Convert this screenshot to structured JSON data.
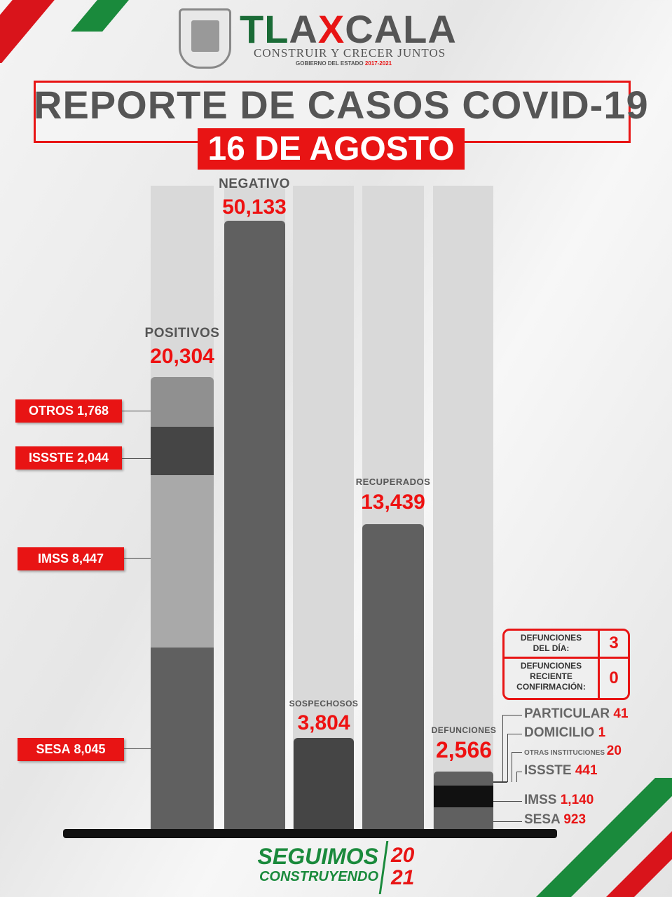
{
  "header": {
    "logo_text": "TLAXCALA",
    "slogan": "CONSTRUIR Y CRECER JUNTOS",
    "gov": "GOBIERNO DEL ESTADO",
    "gov_years": "2017-2021",
    "title": "REPORTE DE CASOS COVID-19",
    "date": "16 DE AGOSTO"
  },
  "colors": {
    "accent_red": "#e81414",
    "green": "#1a8a3c",
    "bar_dark": "#5f5f5f",
    "bar_black": "#111111"
  },
  "chart_data": {
    "type": "bar",
    "categories": [
      "POSITIVOS",
      "NEGATIVO",
      "SOSPECHOSOS",
      "RECUPERADOS",
      "DEFUNCIONES"
    ],
    "values": [
      "20,304",
      "50,133",
      "3,804",
      "13,439",
      "2,566"
    ],
    "positivos_breakdown": [
      {
        "name": "OTROS",
        "value": "1,768"
      },
      {
        "name": "ISSSTE",
        "value": "2,044"
      },
      {
        "name": "IMSS",
        "value": "8,447"
      },
      {
        "name": "SESA",
        "value": "8,045"
      }
    ],
    "defunciones_breakdown": [
      {
        "name": "PARTICULAR",
        "value": "41"
      },
      {
        "name": "DOMICILIO",
        "value": "1"
      },
      {
        "name": "OTRAS INSTITUCIONES",
        "value": "20"
      },
      {
        "name": "ISSSTE",
        "value": "441"
      },
      {
        "name": "IMSS",
        "value": "1,140"
      },
      {
        "name": "SESA",
        "value": "923"
      }
    ]
  },
  "deaths_table": {
    "day_label_1": "DEFUNCIONES",
    "day_label_2": "DEL DÍA:",
    "day_value": "3",
    "recent_label_1": "DEFUNCIONES",
    "recent_label_2": "RECIENTE",
    "recent_label_3": "CONFIRMACIÓN:",
    "recent_value": "0"
  },
  "footer": {
    "line1": "SEGUIMOS",
    "line2": "CONSTRUYENDO",
    "year1": "20",
    "year2": "21"
  }
}
